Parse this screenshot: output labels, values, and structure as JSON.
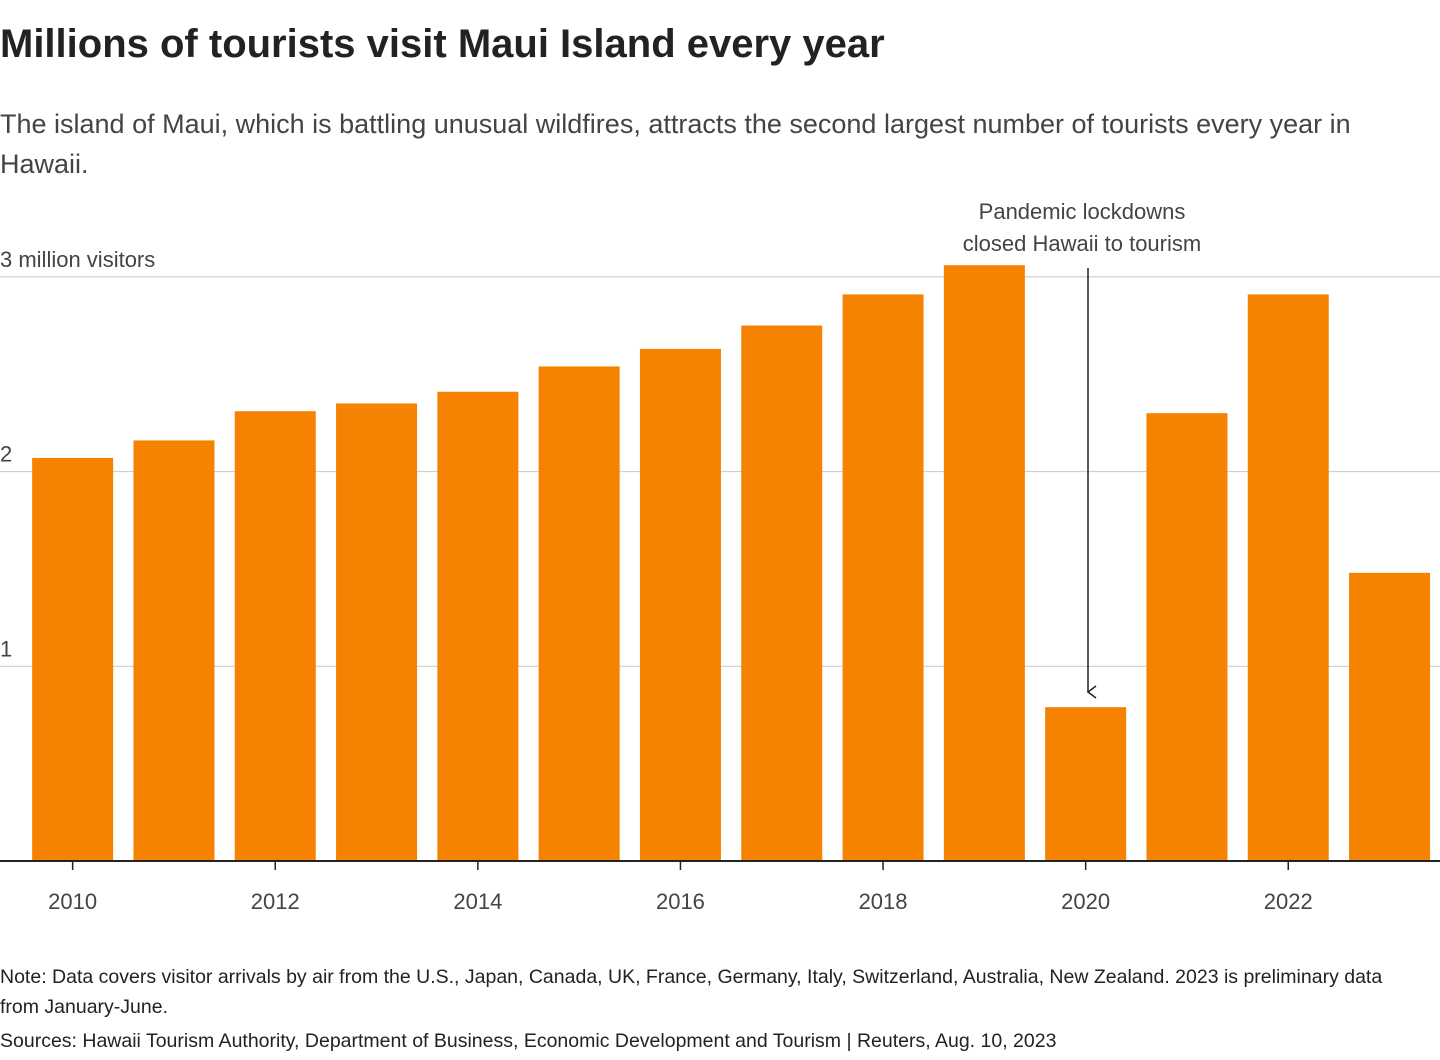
{
  "chart_data": {
    "type": "bar",
    "title": "Millions of tourists visit Maui Island every year",
    "subtitle": "The island of Maui, which is battling unusual wildfires, attracts the second largest number of tourists every year in Hawaii.",
    "categories": [
      "2010",
      null,
      "2012",
      null,
      "2014",
      null,
      "2016",
      null,
      "2018",
      null,
      "2020",
      null,
      "2022",
      null
    ],
    "values": [
      2.07,
      2.16,
      2.31,
      2.35,
      2.41,
      2.54,
      2.63,
      2.75,
      2.91,
      3.06,
      0.79,
      2.3,
      2.91,
      1.48
    ],
    "color": "#f58200",
    "ylim": [
      0,
      3.1
    ],
    "yticks": [
      1,
      2,
      {
        "value": 3,
        "label": "3 million visitors"
      }
    ],
    "grid": true,
    "annotation": [
      "Pandemic lockdowns",
      "closed Hawaii to tourism"
    ],
    "note": "Note: Data covers visitor arrivals by air from the U.S., Japan, Canada, UK, France, Germany, Italy, Switzerland, Australia, New Zealand. 2023 is preliminary data from January-June.",
    "source": "Sources: Hawaii Tourism Authority, Department of Business, Economic Development and Tourism | Reuters, Aug. 10, 2023"
  }
}
